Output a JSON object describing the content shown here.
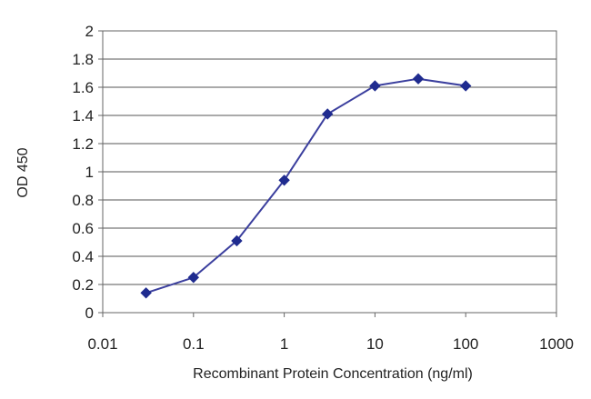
{
  "chart_data": {
    "type": "line",
    "title": "",
    "xlabel": "Recombinant Protein Concentration (ng/ml)",
    "ylabel": "OD 450",
    "x_scale": "log",
    "xlim": [
      0.01,
      1000
    ],
    "ylim": [
      0,
      2
    ],
    "x_ticks": [
      0.01,
      0.1,
      1,
      10,
      100,
      1000
    ],
    "x_tick_labels": [
      "0.01",
      "0.1",
      "1",
      "10",
      "100",
      "1000"
    ],
    "y_ticks": [
      0,
      0.2,
      0.4,
      0.6,
      0.8,
      1,
      1.2,
      1.4,
      1.6,
      1.8,
      2
    ],
    "y_tick_labels": [
      "0",
      "0.2",
      "0.4",
      "0.6",
      "0.8",
      "1",
      "1.2",
      "1.4",
      "1.6",
      "1.8",
      "2"
    ],
    "grid": "horizontal",
    "legend": "none",
    "series": [
      {
        "x": [
          0.03,
          0.1,
          0.3,
          1,
          3,
          10,
          30,
          100
        ],
        "y": [
          0.14,
          0.25,
          0.51,
          0.94,
          1.41,
          1.61,
          1.66,
          1.61
        ],
        "color": "#1f2b8f"
      }
    ],
    "colors": {
      "line": "#3b3f9e",
      "marker": "#1f2b8f",
      "grid": "#555555",
      "frame": "#666666",
      "text": "#222222"
    }
  }
}
